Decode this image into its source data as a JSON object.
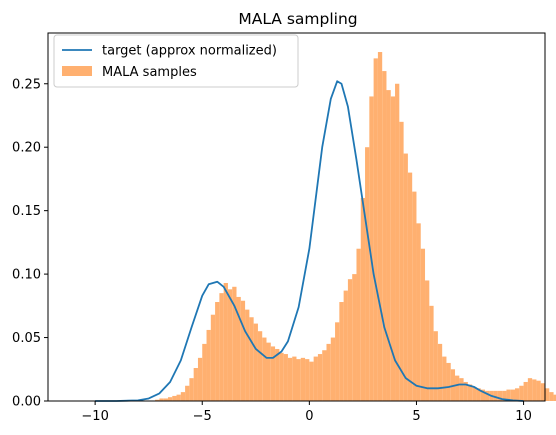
{
  "chart_data": {
    "type": "line",
    "title": "MALA sampling",
    "xlabel": "",
    "ylabel": "",
    "xlim": [
      -12.2,
      11.0
    ],
    "ylim": [
      0.0,
      0.29
    ],
    "xticks": [
      -10,
      -5,
      0,
      5,
      10
    ],
    "yticks": [
      0.0,
      0.05,
      0.1,
      0.15,
      0.2,
      0.25
    ],
    "grid": false,
    "legend": "upper left",
    "colors": {
      "line": "#1f77b4",
      "hist": "#ffb070",
      "axes": "#000000"
    },
    "series": [
      {
        "name": "target (approx normalized)",
        "kind": "line",
        "x": [
          -10,
          -9,
          -8,
          -7.5,
          -7,
          -6.5,
          -6,
          -5.5,
          -5,
          -4.7,
          -4.3,
          -4,
          -3.5,
          -3,
          -2.5,
          -2,
          -1.7,
          -1.3,
          -1,
          -0.5,
          0,
          0.3,
          0.6,
          1,
          1.3,
          1.5,
          1.8,
          2.2,
          2.6,
          3,
          3.5,
          4,
          4.5,
          5,
          5.5,
          6,
          6.5,
          7,
          7.3,
          7.7,
          8,
          8.5,
          9,
          9.5,
          10
        ],
        "y": [
          0.0,
          0.0,
          0.0005,
          0.002,
          0.006,
          0.015,
          0.032,
          0.058,
          0.083,
          0.092,
          0.094,
          0.09,
          0.075,
          0.055,
          0.041,
          0.034,
          0.034,
          0.039,
          0.047,
          0.074,
          0.12,
          0.16,
          0.2,
          0.238,
          0.252,
          0.25,
          0.232,
          0.19,
          0.145,
          0.1,
          0.058,
          0.032,
          0.018,
          0.012,
          0.01,
          0.01,
          0.011,
          0.013,
          0.013,
          0.011,
          0.008,
          0.004,
          0.0015,
          0.0005,
          0.0
        ]
      },
      {
        "name": "MALA samples",
        "kind": "histogram",
        "bin_width": 0.2,
        "bins_from": -7.2,
        "counts": [
          0.001,
          0.002,
          0.002,
          0.003,
          0.004,
          0.005,
          0.007,
          0.012,
          0.018,
          0.026,
          0.034,
          0.045,
          0.056,
          0.068,
          0.078,
          0.085,
          0.093,
          0.088,
          0.09,
          0.082,
          0.079,
          0.072,
          0.066,
          0.061,
          0.055,
          0.05,
          0.046,
          0.043,
          0.041,
          0.038,
          0.037,
          0.034,
          0.035,
          0.033,
          0.034,
          0.033,
          0.031,
          0.035,
          0.037,
          0.04,
          0.045,
          0.05,
          0.062,
          0.078,
          0.087,
          0.096,
          0.1,
          0.12,
          0.16,
          0.2,
          0.24,
          0.27,
          0.275,
          0.26,
          0.245,
          0.24,
          0.25,
          0.22,
          0.195,
          0.18,
          0.165,
          0.14,
          0.12,
          0.095,
          0.075,
          0.055,
          0.045,
          0.035,
          0.03,
          0.025,
          0.02,
          0.018,
          0.015,
          0.013,
          0.011,
          0.01,
          0.009,
          0.008,
          0.008,
          0.008,
          0.008,
          0.008,
          0.009,
          0.009,
          0.01,
          0.012,
          0.015,
          0.018,
          0.017,
          0.016,
          0.014,
          0.01,
          0.007,
          0.005,
          0.003,
          0.002
        ]
      }
    ]
  }
}
